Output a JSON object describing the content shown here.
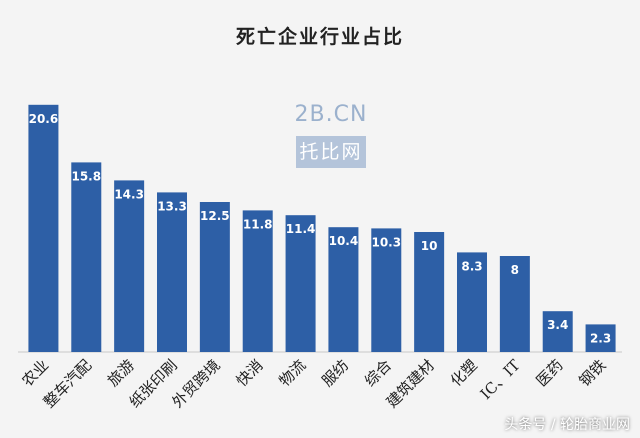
{
  "chart_data": {
    "type": "bar",
    "title": "死亡企业行业占比",
    "categories": [
      "农业",
      "整车汽配",
      "旅游",
      "纸张印刷",
      "外贸跨境",
      "快消",
      "物流",
      "服纺",
      "综合",
      "建筑建材",
      "化塑",
      "IC、IT",
      "医药",
      "钢铁"
    ],
    "values": [
      20.6,
      15.8,
      14.3,
      13.3,
      12.5,
      11.8,
      11.4,
      10.4,
      10.3,
      10,
      8.3,
      8,
      3.4,
      2.3
    ],
    "value_labels": [
      "20.6",
      "15.8",
      "14.3",
      "13.3",
      "12.5",
      "11.8",
      "11.4",
      "10.4",
      "10.3",
      "10",
      "8.3",
      "8",
      "3.4",
      "2.3"
    ],
    "ylim": [
      0,
      21
    ],
    "grid": false,
    "bar_color": "#2d5fa6"
  },
  "watermark": {
    "top": "2B.CN",
    "bottom": "托比网"
  },
  "footer": "头条号 / 轮胎商业网"
}
